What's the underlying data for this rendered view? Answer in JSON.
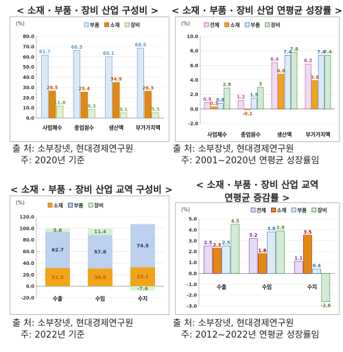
{
  "chart_data": [
    {
      "type": "bar",
      "title": "< 소재 · 부품 · 장비 산업 구성비 >",
      "unit": "(%)",
      "categories": [
        "사업체수",
        "종업원수",
        "생산액",
        "부가가치액"
      ],
      "series": [
        {
          "name": "부품",
          "values": [
            61.7,
            66.3,
            60.1,
            68.5
          ],
          "color": "#5b9bd5",
          "fill": "#dbe9f6"
        },
        {
          "name": "소재",
          "values": [
            26.5,
            25.4,
            34.9,
            26.3
          ],
          "color": "#c55a11",
          "fill": "#e08a12"
        },
        {
          "name": "장비",
          "values": [
            11.8,
            8.3,
            5.1,
            5.3
          ],
          "color": "#70ad47",
          "fill": "#e2efda"
        }
      ],
      "ylim": [
        0,
        80
      ],
      "yticks": [
        "0.0",
        "10.0",
        "20.0",
        "30.0",
        "40.0",
        "50.0",
        "60.0",
        "70.0",
        "80.0"
      ],
      "legend": "top-right",
      "source": [
        "출 처: 소부장넷, 현대경제연구원",
        "주: 2020년 기준"
      ]
    },
    {
      "type": "bar",
      "title": "< 소재 · 부품 · 장비 산업 연평균 성장률 >",
      "unit": "(%)",
      "categories": [
        "사업체수",
        "종업원수",
        "생산액",
        "부가가치액"
      ],
      "series": [
        {
          "name": "전체",
          "values": [
            0.9,
            1.2,
            6.4,
            6.2
          ],
          "color": "#b44e9e",
          "fill": "#eedcf1"
        },
        {
          "name": "소재",
          "values": [
            0.3,
            -0.1,
            4.8,
            3.9
          ],
          "color": "#c55a11",
          "fill": "#f0a41a"
        },
        {
          "name": "부품",
          "values": [
            0.8,
            1.5,
            7.4,
            7.4
          ],
          "color": "#2e75b6",
          "fill": "#ddebf7"
        },
        {
          "name": "장비",
          "values": [
            2.9,
            3.0,
            7.8,
            7.4
          ],
          "color": "#548235",
          "fill": "#d0ecd8"
        }
      ],
      "ylim": [
        -2,
        10
      ],
      "yticks": [
        "-2.0",
        "0.0",
        "2.0",
        "4.0",
        "6.0",
        "8.0",
        "10.0"
      ],
      "legend": "top-left",
      "source": [
        "출 처: 소부장넷, 현대경제연구원",
        "주: 2001~2020년 연평균 성장률임"
      ]
    },
    {
      "type": "bar",
      "stacked": true,
      "title": "< 소재 · 부품 · 장비 산업 교역 구성비 >",
      "unit": "(%)",
      "categories": [
        "수출",
        "수입",
        "수지"
      ],
      "series": [
        {
          "name": "소재",
          "values": [
            31.5,
            30.8,
            33.1
          ],
          "color": "#c55a11",
          "fill": "#f0a41a"
        },
        {
          "name": "부품",
          "values": [
            62.7,
            57.8,
            74.5
          ],
          "color": "#203864",
          "fill": "#bdd1ee"
        },
        {
          "name": "장비",
          "values": [
            5.8,
            11.4,
            -7.6
          ],
          "color": "#548235",
          "fill": "#d8f0d8"
        }
      ],
      "ylim": [
        -20,
        120
      ],
      "yticks": [
        "-20.0",
        "0.0",
        "20.0",
        "40.0",
        "60.0",
        "80.0",
        "100.0",
        "120.0"
      ],
      "legend": "top-left",
      "source": [
        "출 처: 소부장넷, 현대경제연구원",
        "주: 2022년 기준"
      ]
    },
    {
      "type": "bar",
      "title": "< 소재 · 부품 · 장비 산업 교역",
      "title2": "연평균 증감률 >",
      "unit": "(%)",
      "categories": [
        "수출",
        "수입",
        "수지"
      ],
      "series": [
        {
          "name": "전체",
          "values": [
            2.5,
            3.2,
            1.1
          ],
          "color": "#7030a0",
          "fill": "#e4dcf2"
        },
        {
          "name": "소재",
          "values": [
            2.3,
            1.8,
            3.5
          ],
          "color": "#c00000",
          "fill": "#e08a12"
        },
        {
          "name": "부품",
          "values": [
            2.5,
            3.8,
            0.4
          ],
          "color": "#2e75b6",
          "fill": "#ddebf7"
        },
        {
          "name": "장비",
          "values": [
            4.5,
            3.9,
            -2.6
          ],
          "color": "#548235",
          "fill": "#d0ecd8"
        }
      ],
      "ylim": [
        -3,
        5
      ],
      "yticks": [
        "-3.0",
        "-2.0",
        "-1.0",
        "0.0",
        "1.0",
        "2.0",
        "3.0",
        "4.0",
        "5.0"
      ],
      "legend": "top-right",
      "source": [
        "출 처: 소부장넷, 현대경제연구원",
        "주: 2012~2022년 연평균 성장률임"
      ]
    }
  ]
}
